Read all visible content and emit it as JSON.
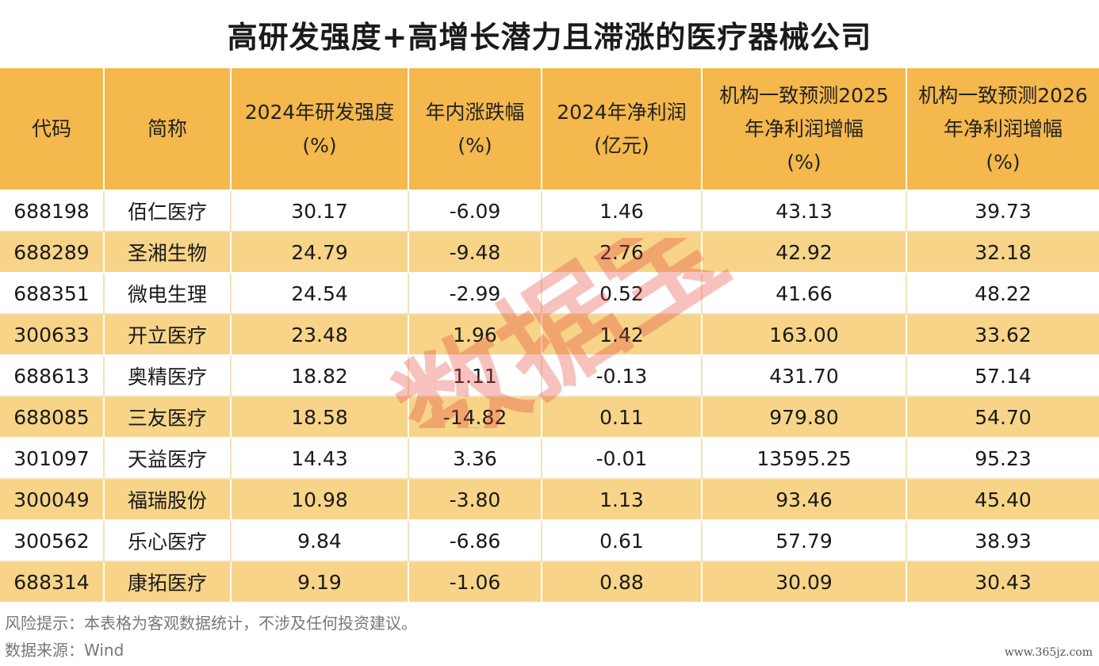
{
  "title": "高研发强度+高增长潜力且滞涨的医疗器械公司",
  "headers": [
    {
      "lines": [
        "代码"
      ]
    },
    {
      "lines": [
        "简称"
      ]
    },
    {
      "lines": [
        "2024年研发强度",
        "(%)"
      ]
    },
    {
      "lines": [
        "年内涨跌幅",
        "(%)"
      ]
    },
    {
      "lines": [
        "2024年净利润",
        "(亿元)"
      ]
    },
    {
      "lines": [
        "机构一致预测2025",
        "年净利润增幅",
        "(%)"
      ]
    },
    {
      "lines": [
        "机构一致预测2026",
        "年净利润增幅",
        "(%)"
      ]
    }
  ],
  "rows": [
    [
      "688198",
      "佰仁医疗",
      "30.17",
      "-6.09",
      "1.46",
      "43.13",
      "39.73"
    ],
    [
      "688289",
      "圣湘生物",
      "24.79",
      "-9.48",
      "2.76",
      "42.92",
      "32.18"
    ],
    [
      "688351",
      "微电生理",
      "24.54",
      "-2.99",
      "0.52",
      "41.66",
      "48.22"
    ],
    [
      "300633",
      "开立医疗",
      "23.48",
      "1.96",
      "1.42",
      "163.00",
      "33.62"
    ],
    [
      "688613",
      "奥精医疗",
      "18.82",
      "1.11",
      "-0.13",
      "431.70",
      "57.14"
    ],
    [
      "688085",
      "三友医疗",
      "18.58",
      "-14.82",
      "0.11",
      "979.80",
      "54.70"
    ],
    [
      "301097",
      "天益医疗",
      "14.43",
      "3.36",
      "-0.01",
      "13595.25",
      "95.23"
    ],
    [
      "300049",
      "福瑞股份",
      "10.98",
      "-3.80",
      "1.13",
      "93.46",
      "45.40"
    ],
    [
      "300562",
      "乐心医疗",
      "9.84",
      "-6.86",
      "0.61",
      "57.79",
      "38.93"
    ],
    [
      "688314",
      "康拓医疗",
      "9.19",
      "-1.06",
      "0.88",
      "30.09",
      "30.43"
    ]
  ],
  "footer": {
    "risk": "风险提示：本表格为客观数据统计，不涉及任何投资建议。",
    "source": "数据来源：Wind"
  },
  "watermark": "数据宝",
  "site": "www.365jz.com",
  "colors": {
    "header_bg": "#f4b84c",
    "stripe_bg": "#f7d488",
    "watermark": "#e8473a"
  }
}
